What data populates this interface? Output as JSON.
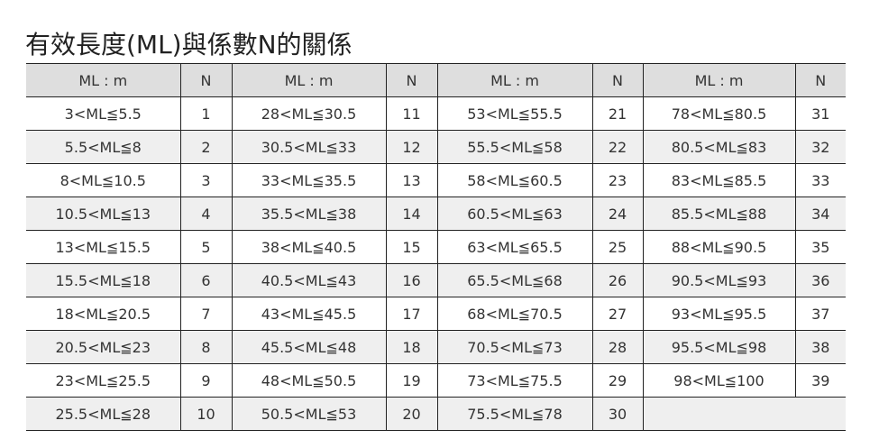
{
  "title": "有效長度(ML)與係數N的關係",
  "table": {
    "headers": [
      "ML : m",
      "N",
      "ML : m",
      "N",
      "ML : m",
      "N",
      "ML : m",
      "N"
    ],
    "rows": [
      [
        "3<ML≦5.5",
        "1",
        "28<ML≦30.5",
        "11",
        "53<ML≦55.5",
        "21",
        "78<ML≦80.5",
        "31"
      ],
      [
        "5.5<ML≦8",
        "2",
        "30.5<ML≦33",
        "12",
        "55.5<ML≦58",
        "22",
        "80.5<ML≦83",
        "32"
      ],
      [
        "8<ML≦10.5",
        "3",
        "33<ML≦35.5",
        "13",
        "58<ML≦60.5",
        "23",
        "83<ML≦85.5",
        "33"
      ],
      [
        "10.5<ML≦13",
        "4",
        "35.5<ML≦38",
        "14",
        "60.5<ML≦63",
        "24",
        "85.5<ML≦88",
        "34"
      ],
      [
        "13<ML≦15.5",
        "5",
        "38<ML≦40.5",
        "15",
        "63<ML≦65.5",
        "25",
        "88<ML≦90.5",
        "35"
      ],
      [
        "15.5<ML≦18",
        "6",
        "40.5<ML≦43",
        "16",
        "65.5<ML≦68",
        "26",
        "90.5<ML≦93",
        "36"
      ],
      [
        "18<ML≦20.5",
        "7",
        "43<ML≦45.5",
        "17",
        "68<ML≦70.5",
        "27",
        "93<ML≦95.5",
        "37"
      ],
      [
        "20.5<ML≦23",
        "8",
        "45.5<ML≦48",
        "18",
        "70.5<ML≦73",
        "28",
        "95.5<ML≦98",
        "38"
      ],
      [
        "23<ML≦25.5",
        "9",
        "48<ML≦50.5",
        "19",
        "73<ML≦75.5",
        "29",
        "98<ML≦100",
        "39"
      ],
      [
        "25.5<ML≦28",
        "10",
        "50.5<ML≦53",
        "20",
        "75.5<ML≦78",
        "30"
      ]
    ]
  }
}
